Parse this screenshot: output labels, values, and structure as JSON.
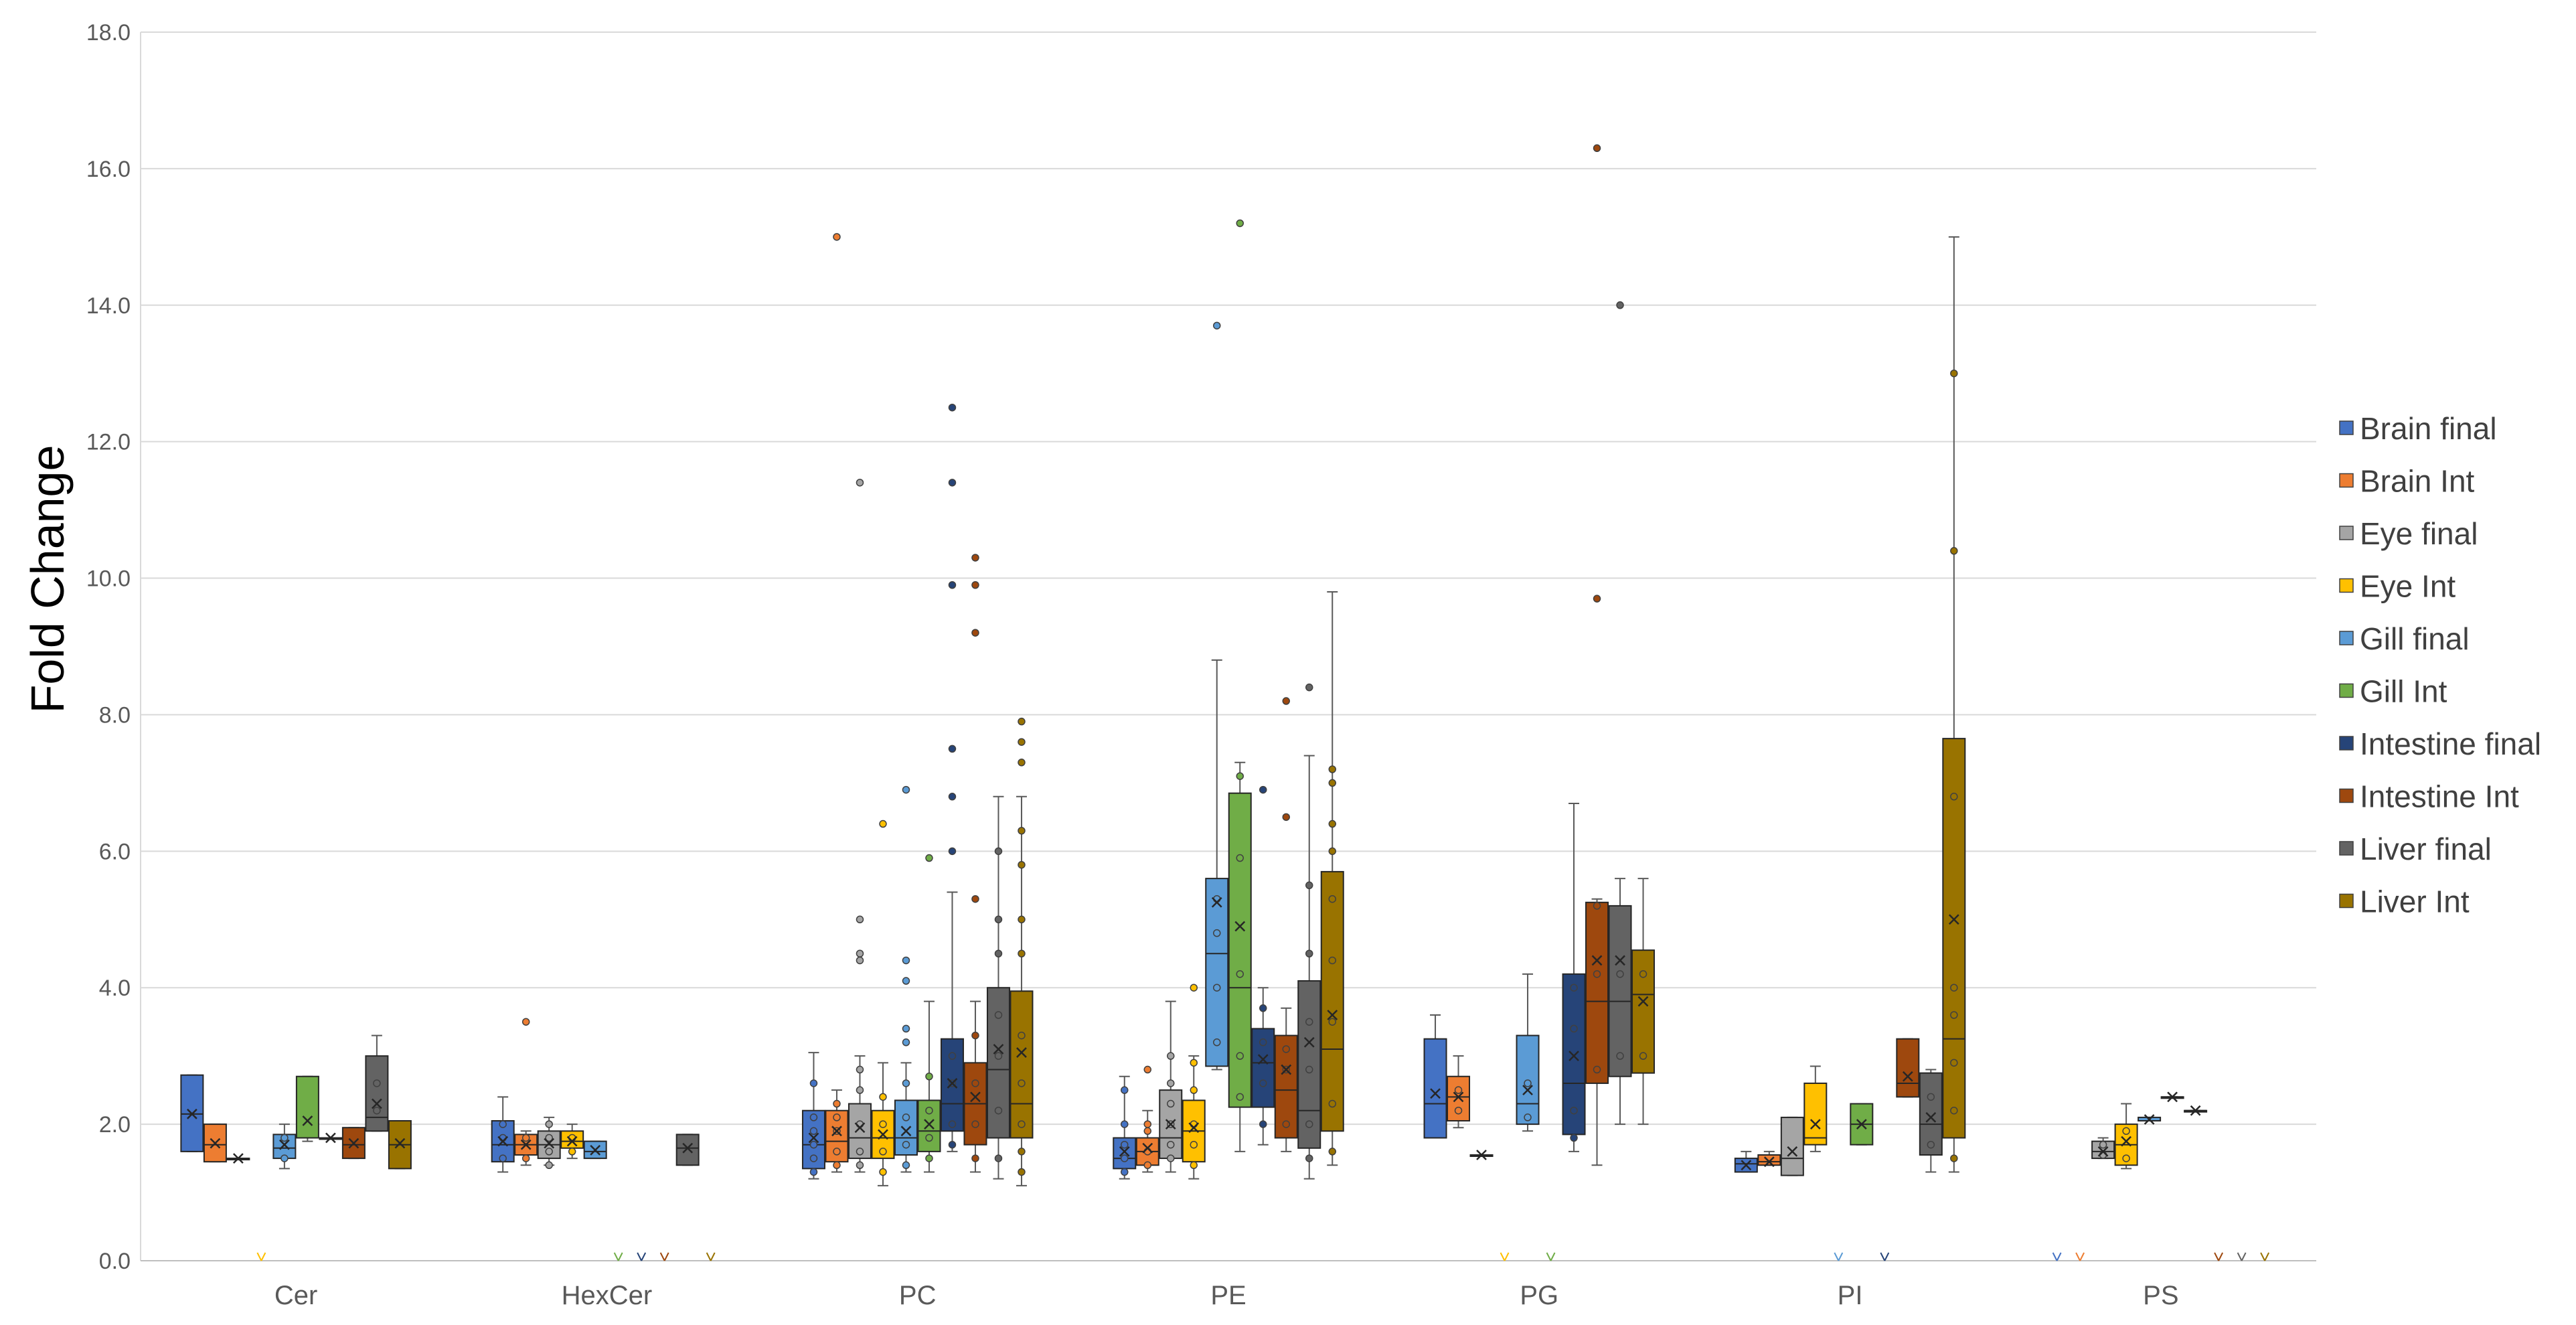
{
  "chart_data": {
    "type": "box",
    "xlabel": "",
    "ylabel": "Fold Change",
    "ylim": [
      0,
      18
    ],
    "yticks": [
      "0.0",
      "2.0",
      "4.0",
      "6.0",
      "8.0",
      "10.0",
      "12.0",
      "14.0",
      "16.0",
      "18.0"
    ],
    "grid": "horizontal",
    "legend_position": "right",
    "categories": [
      "Cer",
      "HexCer",
      "PC",
      "PE",
      "PG",
      "PI",
      "PS"
    ],
    "series": [
      {
        "name": "Brain final",
        "color": "#4472C4",
        "boxes": [
          {
            "min": 1.6,
            "q1": 1.6,
            "median": 2.15,
            "q3": 2.72,
            "max": 2.72,
            "mean": 2.15,
            "points": []
          },
          {
            "min": 1.3,
            "q1": 1.45,
            "median": 1.7,
            "q3": 2.05,
            "max": 2.4,
            "mean": 1.75,
            "points": [
              1.5,
              1.8,
              2.0
            ]
          },
          {
            "min": 1.2,
            "q1": 1.35,
            "median": 1.7,
            "q3": 2.2,
            "max": 3.05,
            "mean": 1.8,
            "points": [
              1.3,
              1.5,
              1.7,
              1.9,
              2.1,
              2.6
            ]
          },
          {
            "min": 1.2,
            "q1": 1.35,
            "median": 1.5,
            "q3": 1.8,
            "max": 2.7,
            "mean": 1.6,
            "points": [
              1.3,
              1.5,
              1.7,
              2.0,
              2.5
            ]
          },
          {
            "min": 1.8,
            "q1": 1.8,
            "median": 2.3,
            "q3": 3.25,
            "max": 3.6,
            "mean": 2.45,
            "points": []
          },
          {
            "min": 1.3,
            "q1": 1.3,
            "median": 1.42,
            "q3": 1.5,
            "max": 1.6,
            "mean": 1.4,
            "points": []
          },
          {
            "min": 0,
            "q1": 0,
            "median": 0,
            "q3": 0,
            "max": 0,
            "mean": 0,
            "points": []
          }
        ]
      },
      {
        "name": "Brain Int",
        "color": "#ED7D31",
        "boxes": [
          {
            "min": 1.45,
            "q1": 1.45,
            "median": 1.7,
            "q3": 2.0,
            "max": 2.0,
            "mean": 1.72,
            "points": []
          },
          {
            "min": 1.4,
            "q1": 1.55,
            "median": 1.7,
            "q3": 1.85,
            "max": 1.9,
            "mean": 1.7,
            "points": [
              1.5,
              1.8,
              3.5
            ]
          },
          {
            "min": 1.3,
            "q1": 1.45,
            "median": 1.75,
            "q3": 2.2,
            "max": 2.5,
            "mean": 1.9,
            "points": [
              1.4,
              1.6,
              1.9,
              2.1,
              2.3,
              15.0
            ]
          },
          {
            "min": 1.3,
            "q1": 1.4,
            "median": 1.6,
            "q3": 1.8,
            "max": 2.2,
            "mean": 1.65,
            "points": [
              1.4,
              1.6,
              1.9,
              2.0,
              2.8
            ]
          },
          {
            "min": 1.95,
            "q1": 2.05,
            "median": 2.4,
            "q3": 2.7,
            "max": 3.0,
            "mean": 2.4,
            "points": [
              2.2,
              2.5
            ]
          },
          {
            "min": 1.4,
            "q1": 1.4,
            "median": 1.45,
            "q3": 1.55,
            "max": 1.6,
            "mean": 1.45,
            "points": []
          },
          {
            "min": 0,
            "q1": 0,
            "median": 0,
            "q3": 0,
            "max": 0,
            "mean": 0,
            "points": []
          }
        ]
      },
      {
        "name": "Eye final",
        "color": "#A5A5A5",
        "boxes": [
          {
            "min": 1.5,
            "q1": 1.5,
            "median": 1.5,
            "q3": 1.5,
            "max": 1.5,
            "mean": 1.5,
            "points": []
          },
          {
            "min": 1.4,
            "q1": 1.5,
            "median": 1.7,
            "q3": 1.9,
            "max": 2.1,
            "mean": 1.72,
            "points": [
              1.4,
              1.6,
              1.8,
              2.0
            ]
          },
          {
            "min": 1.3,
            "q1": 1.5,
            "median": 1.8,
            "q3": 2.3,
            "max": 3.0,
            "mean": 1.95,
            "points": [
              1.4,
              1.6,
              2.0,
              2.5,
              2.8,
              4.4,
              4.5,
              5.0,
              11.4
            ]
          },
          {
            "min": 1.3,
            "q1": 1.5,
            "median": 1.8,
            "q3": 2.5,
            "max": 3.8,
            "mean": 2.0,
            "points": [
              1.5,
              1.7,
              2.0,
              2.3,
              2.6,
              3.0
            ]
          },
          {
            "min": 1.55,
            "q1": 1.55,
            "median": 1.55,
            "q3": 1.55,
            "max": 1.55,
            "mean": 1.55,
            "points": []
          },
          {
            "min": 1.25,
            "q1": 1.25,
            "median": 1.5,
            "q3": 2.1,
            "max": 2.1,
            "mean": 1.6,
            "points": []
          },
          {
            "min": 1.5,
            "q1": 1.5,
            "median": 1.6,
            "q3": 1.75,
            "max": 1.8,
            "mean": 1.6,
            "points": [
              1.55,
              1.7
            ]
          }
        ]
      },
      {
        "name": "Eye Int",
        "color": "#FFC000",
        "boxes": [
          {
            "min": 0,
            "q1": 0,
            "median": 0,
            "q3": 0,
            "max": 0,
            "mean": 0,
            "points": []
          },
          {
            "min": 1.5,
            "q1": 1.65,
            "median": 1.75,
            "q3": 1.9,
            "max": 2.0,
            "mean": 1.75,
            "points": [
              1.6,
              1.8
            ]
          },
          {
            "min": 1.1,
            "q1": 1.5,
            "median": 1.8,
            "q3": 2.2,
            "max": 2.9,
            "mean": 1.85,
            "points": [
              1.3,
              1.6,
              2.0,
              2.4,
              6.4
            ]
          },
          {
            "min": 1.2,
            "q1": 1.45,
            "median": 1.9,
            "q3": 2.35,
            "max": 3.0,
            "mean": 1.95,
            "points": [
              1.4,
              1.7,
              2.0,
              2.5,
              2.9,
              4.0
            ]
          },
          {
            "min": 0,
            "q1": 0,
            "median": 0,
            "q3": 0,
            "max": 0,
            "mean": 0,
            "points": []
          },
          {
            "min": 1.6,
            "q1": 1.7,
            "median": 1.8,
            "q3": 2.6,
            "max": 2.85,
            "mean": 2.0,
            "points": []
          },
          {
            "min": 1.35,
            "q1": 1.4,
            "median": 1.7,
            "q3": 2.0,
            "max": 2.3,
            "mean": 1.75,
            "points": [
              1.5,
              1.9
            ]
          }
        ]
      },
      {
        "name": "Gill final",
        "color": "#5B9BD5",
        "boxes": [
          {
            "min": 1.35,
            "q1": 1.5,
            "median": 1.65,
            "q3": 1.85,
            "max": 2.0,
            "mean": 1.7,
            "points": [
              1.5,
              1.8
            ]
          },
          {
            "min": 1.5,
            "q1": 1.5,
            "median": 1.6,
            "q3": 1.75,
            "max": 1.75,
            "mean": 1.62,
            "points": []
          },
          {
            "min": 1.3,
            "q1": 1.55,
            "median": 1.8,
            "q3": 2.35,
            "max": 2.9,
            "mean": 1.9,
            "points": [
              1.4,
              1.7,
              2.1,
              2.6,
              3.2,
              3.4,
              4.1,
              4.4,
              6.9
            ]
          },
          {
            "min": 2.8,
            "q1": 2.85,
            "median": 4.5,
            "q3": 5.6,
            "max": 8.8,
            "mean": 5.25,
            "points": [
              3.2,
              4.0,
              4.8,
              5.3,
              13.7
            ]
          },
          {
            "min": 1.9,
            "q1": 2.0,
            "median": 2.3,
            "q3": 3.3,
            "max": 4.2,
            "mean": 2.5,
            "points": [
              2.1,
              2.6
            ]
          },
          {
            "min": 0,
            "q1": 0,
            "median": 0,
            "q3": 0,
            "max": 0,
            "mean": 0,
            "points": []
          },
          {
            "min": 2.05,
            "q1": 2.05,
            "median": 2.05,
            "q3": 2.1,
            "max": 2.1,
            "mean": 2.07,
            "points": []
          }
        ]
      },
      {
        "name": "Gill Int",
        "color": "#70AD47",
        "boxes": [
          {
            "min": 1.75,
            "q1": 1.8,
            "median": 1.8,
            "q3": 2.7,
            "max": 2.7,
            "mean": 2.05,
            "points": []
          },
          {
            "min": 0,
            "q1": 0,
            "median": 0,
            "q3": 0,
            "max": 0,
            "mean": 0,
            "points": []
          },
          {
            "min": 1.3,
            "q1": 1.6,
            "median": 1.9,
            "q3": 2.35,
            "max": 3.8,
            "mean": 2.0,
            "points": [
              1.5,
              1.8,
              2.2,
              2.7,
              5.9
            ]
          },
          {
            "min": 1.6,
            "q1": 2.25,
            "median": 4.0,
            "q3": 6.85,
            "max": 7.3,
            "mean": 4.9,
            "points": [
              2.4,
              3.0,
              4.2,
              5.9,
              7.1,
              15.2
            ]
          },
          {
            "min": 0,
            "q1": 0,
            "median": 0,
            "q3": 0,
            "max": 0,
            "mean": 0,
            "points": []
          },
          {
            "min": 1.7,
            "q1": 1.7,
            "median": 2.0,
            "q3": 2.3,
            "max": 2.3,
            "mean": 2.0,
            "points": []
          },
          {
            "min": 2.4,
            "q1": 2.4,
            "median": 2.4,
            "q3": 2.4,
            "max": 2.4,
            "mean": 2.4,
            "points": []
          }
        ]
      },
      {
        "name": "Intestine final",
        "color": "#264478",
        "boxes": [
          {
            "min": 1.8,
            "q1": 1.8,
            "median": 1.8,
            "q3": 1.8,
            "max": 1.8,
            "mean": 1.8,
            "points": []
          },
          {
            "min": 0,
            "q1": 0,
            "median": 0,
            "q3": 0,
            "max": 0,
            "mean": 0,
            "points": []
          },
          {
            "min": 1.6,
            "q1": 1.9,
            "median": 2.3,
            "q3": 3.25,
            "max": 5.4,
            "mean": 2.6,
            "points": [
              1.7,
              2.0,
              2.6,
              3.0,
              6.0,
              6.8,
              7.5,
              9.9,
              11.4,
              12.5
            ]
          },
          {
            "min": 1.7,
            "q1": 2.25,
            "median": 2.9,
            "q3": 3.4,
            "max": 4.0,
            "mean": 2.95,
            "points": [
              2.0,
              2.6,
              3.2,
              3.7,
              6.9
            ]
          },
          {
            "min": 1.6,
            "q1": 1.85,
            "median": 2.6,
            "q3": 4.2,
            "max": 6.7,
            "mean": 3.0,
            "points": [
              1.8,
              2.2,
              3.4,
              4.0
            ]
          },
          {
            "min": 0,
            "q1": 0,
            "median": 0,
            "q3": 0,
            "max": 0,
            "mean": 0,
            "points": []
          },
          {
            "min": 2.2,
            "q1": 2.2,
            "median": 2.2,
            "q3": 2.2,
            "max": 2.2,
            "mean": 2.2,
            "points": []
          }
        ]
      },
      {
        "name": "Intestine Int",
        "color": "#9E480E",
        "boxes": [
          {
            "min": 1.5,
            "q1": 1.5,
            "median": 1.7,
            "q3": 1.95,
            "max": 1.95,
            "mean": 1.72,
            "points": []
          },
          {
            "min": 0,
            "q1": 0,
            "median": 0,
            "q3": 0,
            "max": 0,
            "mean": 0,
            "points": []
          },
          {
            "min": 1.3,
            "q1": 1.7,
            "median": 2.3,
            "q3": 2.9,
            "max": 3.8,
            "mean": 2.4,
            "points": [
              1.5,
              2.0,
              2.6,
              3.3,
              5.3,
              9.2,
              9.9,
              10.3
            ]
          },
          {
            "min": 1.6,
            "q1": 1.8,
            "median": 2.5,
            "q3": 3.3,
            "max": 3.7,
            "mean": 2.8,
            "points": [
              2.0,
              2.8,
              3.1,
              6.5,
              8.2
            ]
          },
          {
            "min": 1.4,
            "q1": 2.6,
            "median": 3.8,
            "q3": 5.25,
            "max": 5.3,
            "mean": 4.4,
            "points": [
              2.8,
              4.2,
              5.2,
              9.7,
              16.3
            ]
          },
          {
            "min": 2.4,
            "q1": 2.4,
            "median": 2.6,
            "q3": 3.25,
            "max": 3.25,
            "mean": 2.7,
            "points": []
          },
          {
            "min": 0,
            "q1": 0,
            "median": 0,
            "q3": 0,
            "max": 0,
            "mean": 0,
            "points": []
          }
        ]
      },
      {
        "name": "Liver final",
        "color": "#636363",
        "boxes": [
          {
            "min": 1.9,
            "q1": 1.9,
            "median": 2.1,
            "q3": 3.0,
            "max": 3.3,
            "mean": 2.3,
            "points": [
              2.2,
              2.6
            ]
          },
          {
            "min": 1.4,
            "q1": 1.4,
            "median": 1.65,
            "q3": 1.85,
            "max": 1.85,
            "mean": 1.65,
            "points": []
          },
          {
            "min": 1.2,
            "q1": 1.8,
            "median": 2.8,
            "q3": 4.0,
            "max": 6.8,
            "mean": 3.1,
            "points": [
              1.5,
              2.2,
              3.0,
              3.6,
              4.5,
              5.0,
              6.0
            ]
          },
          {
            "min": 1.2,
            "q1": 1.65,
            "median": 2.2,
            "q3": 4.1,
            "max": 7.4,
            "mean": 3.2,
            "points": [
              1.5,
              2.0,
              2.8,
              3.5,
              4.5,
              5.5,
              8.4
            ]
          },
          {
            "min": 2.0,
            "q1": 2.7,
            "median": 3.8,
            "q3": 5.2,
            "max": 5.6,
            "mean": 4.4,
            "points": [
              3.0,
              4.2,
              14.0
            ]
          },
          {
            "min": 1.3,
            "q1": 1.55,
            "median": 2.0,
            "q3": 2.75,
            "max": 2.8,
            "mean": 2.1,
            "points": [
              1.7,
              2.4
            ]
          },
          {
            "min": 0,
            "q1": 0,
            "median": 0,
            "q3": 0,
            "max": 0,
            "mean": 0,
            "points": []
          }
        ]
      },
      {
        "name": "Liver Int",
        "color": "#997300",
        "boxes": [
          {
            "min": 1.35,
            "q1": 1.35,
            "median": 1.7,
            "q3": 2.05,
            "max": 2.05,
            "mean": 1.72,
            "points": []
          },
          {
            "min": 0,
            "q1": 0,
            "median": 0,
            "q3": 0,
            "max": 0,
            "mean": 0,
            "points": []
          },
          {
            "min": 1.1,
            "q1": 1.8,
            "median": 2.3,
            "q3": 3.95,
            "max": 6.8,
            "mean": 3.05,
            "points": [
              1.3,
              1.6,
              2.0,
              2.6,
              3.3,
              4.5,
              5.0,
              5.8,
              6.3,
              7.3,
              7.6,
              7.9
            ]
          },
          {
            "min": 1.4,
            "q1": 1.9,
            "median": 3.1,
            "q3": 5.7,
            "max": 9.8,
            "mean": 3.6,
            "points": [
              1.6,
              2.3,
              3.5,
              4.4,
              5.3,
              6.0,
              6.4,
              7.0,
              7.2
            ]
          },
          {
            "min": 2.0,
            "q1": 2.75,
            "median": 3.9,
            "q3": 4.55,
            "max": 5.6,
            "mean": 3.8,
            "points": [
              3.0,
              4.2
            ]
          },
          {
            "min": 1.3,
            "q1": 1.8,
            "median": 3.25,
            "q3": 7.65,
            "max": 15.0,
            "mean": 5.0,
            "points": [
              1.5,
              2.2,
              2.9,
              3.6,
              4.0,
              6.8,
              10.4,
              13.0
            ]
          },
          {
            "min": 0,
            "q1": 0,
            "median": 0,
            "q3": 0,
            "max": 0,
            "mean": 0,
            "points": []
          }
        ]
      }
    ]
  }
}
